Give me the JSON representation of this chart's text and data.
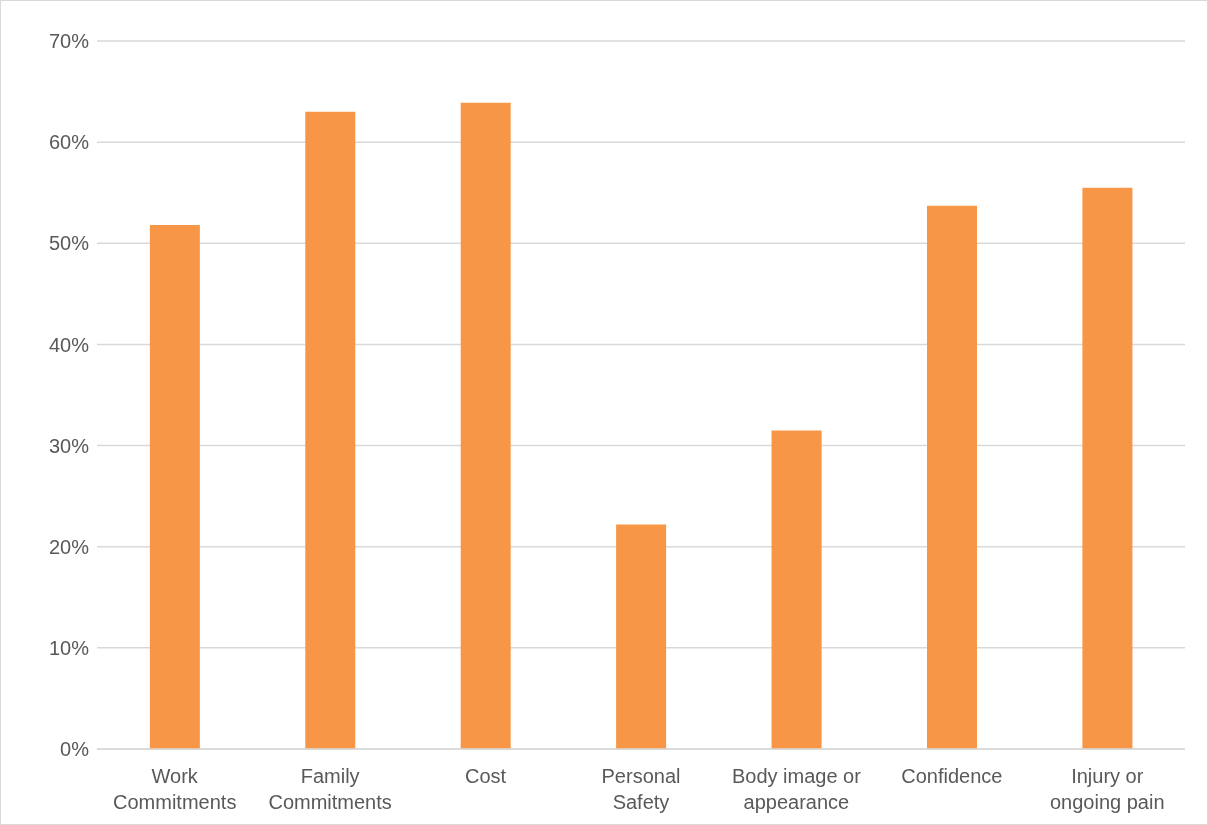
{
  "chart_data": {
    "type": "bar",
    "categories": [
      "Work Commitments",
      "Family Commitments",
      "Cost",
      "Personal Safety",
      "Body image or appearance",
      "Confidence",
      "Injury or ongoing pain"
    ],
    "values": [
      51.8,
      63.0,
      63.9,
      22.2,
      31.5,
      53.7,
      55.5
    ],
    "color": "#f79646",
    "ylim": [
      0,
      70
    ],
    "yticks": [
      {
        "value": 0,
        "label": "0%"
      },
      {
        "value": 10,
        "label": "10%"
      },
      {
        "value": 20,
        "label": "20%"
      },
      {
        "value": 30,
        "label": "30%"
      },
      {
        "value": 40,
        "label": "40%"
      },
      {
        "value": 50,
        "label": "50%"
      },
      {
        "value": 60,
        "label": "60%"
      },
      {
        "value": 70,
        "label": "70%"
      }
    ],
    "grid": "y"
  }
}
